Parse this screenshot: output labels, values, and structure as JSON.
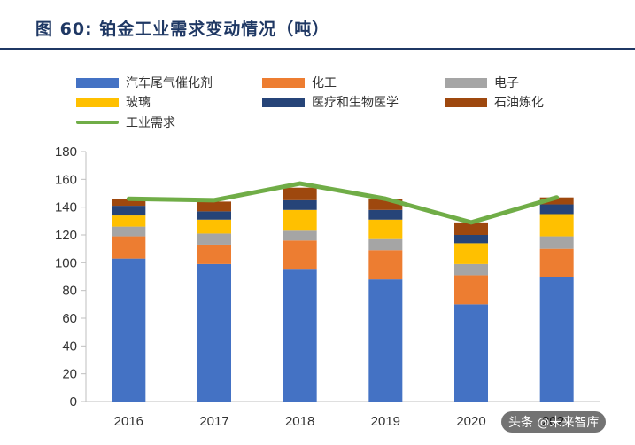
{
  "header": {
    "title": "图  60:  铂金工业需求变动情况（吨）"
  },
  "colors": {
    "title": "#1f3864",
    "axis": "#bfbfbf",
    "auto": "#4472c4",
    "chem": "#ed7d31",
    "elec": "#a5a5a5",
    "glass": "#ffc000",
    "medical": "#264478",
    "petro": "#9e480e",
    "industrial": "#70ad47"
  },
  "chart_data": {
    "type": "bar",
    "stacked": true,
    "title": "铂金工业需求变动情况（吨）",
    "xlabel": "",
    "ylabel": "",
    "ylim": [
      0,
      180
    ],
    "yticks": [
      0,
      20,
      40,
      60,
      80,
      100,
      120,
      140,
      160,
      180
    ],
    "categories": [
      "2016",
      "2017",
      "2018",
      "2019",
      "2020",
      "2021"
    ],
    "series": [
      {
        "name": "汽车尾气催化剂",
        "color": "#4472c4",
        "values": [
          103,
          99,
          95,
          88,
          70,
          90
        ]
      },
      {
        "name": "化工",
        "color": "#ed7d31",
        "values": [
          16,
          14,
          21,
          21,
          21,
          20
        ]
      },
      {
        "name": "电子",
        "color": "#a5a5a5",
        "values": [
          7,
          8,
          7,
          8,
          8,
          9
        ]
      },
      {
        "name": "玻璃",
        "color": "#ffc000",
        "values": [
          8,
          10,
          15,
          14,
          15,
          16
        ]
      },
      {
        "name": "医疗和生物医学",
        "color": "#264478",
        "values": [
          7,
          6,
          7,
          7,
          6,
          7
        ]
      },
      {
        "name": "石油炼化",
        "color": "#9e480e",
        "values": [
          5,
          7,
          9,
          8,
          9,
          5
        ]
      }
    ],
    "line": {
      "name": "工业需求",
      "color": "#70ad47",
      "values": [
        146,
        145,
        157,
        146,
        129,
        147
      ]
    }
  },
  "watermark": {
    "text": "头条 @未来智库"
  }
}
